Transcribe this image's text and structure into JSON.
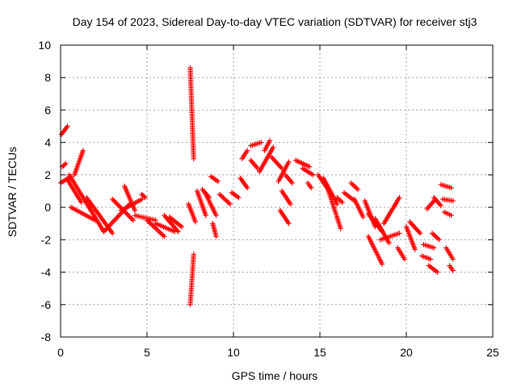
{
  "chart_data": {
    "type": "scatter",
    "title": "Day 154 of 2023, Sidereal Day-to-day VTEC variation (SDTVAR) for receiver stj3",
    "xlabel": "GPS time / hours",
    "ylabel": "SDTVAR / TECUs",
    "xlim": [
      0,
      25
    ],
    "ylim": [
      -8,
      10
    ],
    "xticks": [
      0,
      5,
      10,
      15,
      20,
      25
    ],
    "yticks": [
      -8,
      -6,
      -4,
      -2,
      0,
      2,
      4,
      6,
      8,
      10
    ],
    "grid": true,
    "marker": "+",
    "color": "#ff0000",
    "series": [
      {
        "name": "SDTVAR",
        "segments": [
          {
            "x": [
              0.05,
              0.4
            ],
            "y": [
              4.5,
              5.0
            ]
          },
          {
            "x": [
              0.1,
              0.3
            ],
            "y": [
              2.5,
              2.7
            ]
          },
          {
            "x": [
              0.0,
              0.6
            ],
            "y": [
              1.5,
              1.9
            ]
          },
          {
            "x": [
              0.5,
              2.5
            ],
            "y": [
              2.0,
              -1.5
            ]
          },
          {
            "x": [
              0.4,
              1.2
            ],
            "y": [
              1.7,
              0.3
            ]
          },
          {
            "x": [
              0.8,
              1.3
            ],
            "y": [
              2.0,
              3.5
            ]
          },
          {
            "x": [
              0.6,
              2.0
            ],
            "y": [
              0.0,
              -0.8
            ]
          },
          {
            "x": [
              1.5,
              3.0
            ],
            "y": [
              0.6,
              -1.6
            ]
          },
          {
            "x": [
              2.5,
              4.0
            ],
            "y": [
              -1.5,
              0.2
            ]
          },
          {
            "x": [
              3.0,
              4.2
            ],
            "y": [
              0.5,
              -0.8
            ]
          },
          {
            "x": [
              3.5,
              4.7
            ],
            "y": [
              -0.2,
              0.5
            ]
          },
          {
            "x": [
              3.7,
              4.3
            ],
            "y": [
              1.3,
              -0.2
            ]
          },
          {
            "x": [
              4.7,
              4.9
            ],
            "y": [
              0.8,
              0.6
            ]
          },
          {
            "x": [
              4.3,
              5.5
            ],
            "y": [
              -0.5,
              -0.8
            ]
          },
          {
            "x": [
              5.0,
              6.0
            ],
            "y": [
              -0.8,
              -1.8
            ]
          },
          {
            "x": [
              5.5,
              6.6
            ],
            "y": [
              -1.0,
              -1.5
            ]
          },
          {
            "x": [
              6.0,
              6.8
            ],
            "y": [
              -0.5,
              -1.5
            ]
          },
          {
            "x": [
              6.3,
              7.0
            ],
            "y": [
              -0.6,
              -1.2
            ]
          },
          {
            "x": [
              7.5,
              7.7
            ],
            "y": [
              8.6,
              3.0
            ]
          },
          {
            "x": [
              7.5,
              7.7
            ],
            "y": [
              -6.0,
              -2.9
            ]
          },
          {
            "x": [
              7.4,
              7.8
            ],
            "y": [
              0.2,
              -0.9
            ]
          },
          {
            "x": [
              7.9,
              8.4
            ],
            "y": [
              1.0,
              -0.5
            ]
          },
          {
            "x": [
              8.2,
              8.6
            ],
            "y": [
              1.1,
              0.6
            ]
          },
          {
            "x": [
              8.4,
              9.0
            ],
            "y": [
              0.8,
              -0.5
            ]
          },
          {
            "x": [
              8.7,
              9.1
            ],
            "y": [
              1.9,
              1.6
            ]
          },
          {
            "x": [
              8.8,
              9.0
            ],
            "y": [
              -1.0,
              -1.8
            ]
          },
          {
            "x": [
              9.2,
              9.8
            ],
            "y": [
              0.8,
              0.2
            ]
          },
          {
            "x": [
              9.9,
              10.3
            ],
            "y": [
              0.9,
              0.6
            ]
          },
          {
            "x": [
              10.4,
              10.8
            ],
            "y": [
              1.8,
              1.2
            ]
          },
          {
            "x": [
              10.5,
              10.8
            ],
            "y": [
              3.0,
              3.5
            ]
          },
          {
            "x": [
              11.0,
              11.6
            ],
            "y": [
              3.8,
              4.0
            ]
          },
          {
            "x": [
              11.0,
              11.4
            ],
            "y": [
              2.9,
              2.4
            ]
          },
          {
            "x": [
              11.5,
              12.3
            ],
            "y": [
              2.2,
              3.7
            ]
          },
          {
            "x": [
              11.8,
              12.1
            ],
            "y": [
              3.5,
              4.1
            ]
          },
          {
            "x": [
              12.2,
              12.8
            ],
            "y": [
              3.1,
              2.4
            ]
          },
          {
            "x": [
              12.6,
              13.2
            ],
            "y": [
              1.6,
              2.8
            ]
          },
          {
            "x": [
              12.7,
              13.2
            ],
            "y": [
              -0.2,
              -1.0
            ]
          },
          {
            "x": [
              12.8,
              13.3
            ],
            "y": [
              1.0,
              0.2
            ]
          },
          {
            "x": [
              13.0,
              13.4
            ],
            "y": [
              2.0,
              1.5
            ]
          },
          {
            "x": [
              13.6,
              14.4
            ],
            "y": [
              2.9,
              2.5
            ]
          },
          {
            "x": [
              14.3,
              14.5
            ],
            "y": [
              1.5,
              1.2
            ]
          },
          {
            "x": [
              14.0,
              14.6
            ],
            "y": [
              2.4,
              2.0
            ]
          },
          {
            "x": [
              14.9,
              15.6
            ],
            "y": [
              2.0,
              0.9
            ]
          },
          {
            "x": [
              15.2,
              16.0
            ],
            "y": [
              1.8,
              0.2
            ]
          },
          {
            "x": [
              15.5,
              16.2
            ],
            "y": [
              1.0,
              -1.3
            ]
          },
          {
            "x": [
              16.0,
              16.3
            ],
            "y": [
              0.6,
              0.3
            ]
          },
          {
            "x": [
              16.4,
              17.0
            ],
            "y": [
              0.9,
              0.4
            ]
          },
          {
            "x": [
              16.8,
              17.2
            ],
            "y": [
              1.5,
              1.1
            ]
          },
          {
            "x": [
              17.0,
              17.5
            ],
            "y": [
              0.5,
              -0.6
            ]
          },
          {
            "x": [
              17.6,
              18.2
            ],
            "y": [
              0.4,
              -1.2
            ]
          },
          {
            "x": [
              17.8,
              18.6
            ],
            "y": [
              -0.4,
              -1.5
            ]
          },
          {
            "x": [
              17.8,
              18.6
            ],
            "y": [
              -1.8,
              -3.5
            ]
          },
          {
            "x": [
              18.2,
              19.0
            ],
            "y": [
              -0.7,
              -2.2
            ]
          },
          {
            "x": [
              18.5,
              19.6
            ],
            "y": [
              -2.0,
              -1.6
            ]
          },
          {
            "x": [
              18.7,
              19.6
            ],
            "y": [
              -1.0,
              0.6
            ]
          },
          {
            "x": [
              19.5,
              19.9
            ],
            "y": [
              -2.5,
              -3.2
            ]
          },
          {
            "x": [
              20.0,
              20.5
            ],
            "y": [
              -1.2,
              -2.6
            ]
          },
          {
            "x": [
              20.2,
              20.8
            ],
            "y": [
              -0.9,
              -1.6
            ]
          },
          {
            "x": [
              20.9,
              21.4
            ],
            "y": [
              -3.0,
              -3.2
            ]
          },
          {
            "x": [
              21.0,
              21.6
            ],
            "y": [
              -2.3,
              -2.5
            ]
          },
          {
            "x": [
              21.2,
              21.6
            ],
            "y": [
              -0.1,
              0.4
            ]
          },
          {
            "x": [
              21.3,
              21.8
            ],
            "y": [
              -3.6,
              -4.0
            ]
          },
          {
            "x": [
              21.5,
              21.9
            ],
            "y": [
              -1.6,
              -2.0
            ]
          },
          {
            "x": [
              21.6,
              22.0
            ],
            "y": [
              0.6,
              0.1
            ]
          },
          {
            "x": [
              22.0,
              22.6
            ],
            "y": [
              1.4,
              1.2
            ]
          },
          {
            "x": [
              22.1,
              22.7
            ],
            "y": [
              0.5,
              0.4
            ]
          },
          {
            "x": [
              22.2,
              22.6
            ],
            "y": [
              -0.3,
              -0.5
            ]
          },
          {
            "x": [
              22.3,
              22.7
            ],
            "y": [
              -2.5,
              -3.2
            ]
          },
          {
            "x": [
              22.5,
              22.7
            ],
            "y": [
              -3.6,
              -3.9
            ]
          }
        ]
      }
    ]
  }
}
